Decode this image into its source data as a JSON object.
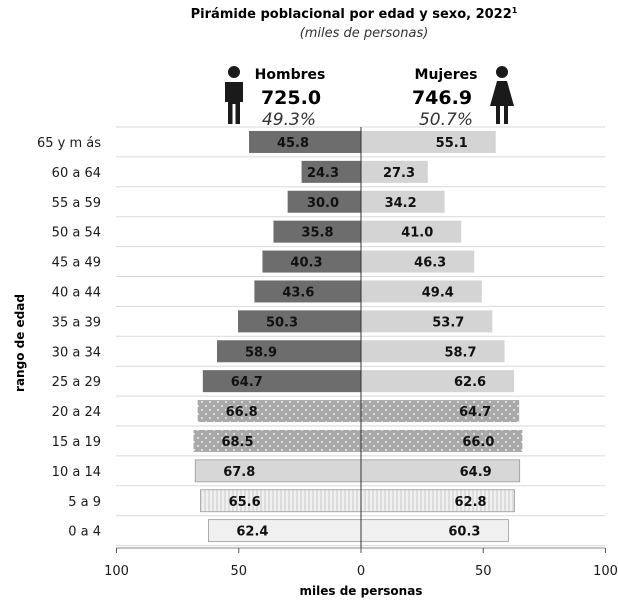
{
  "chart_data": {
    "type": "bar",
    "orientation": "horizontal-population-pyramid",
    "title": "Pirámide poblacional por edad y sexo, 2022",
    "title_superscript": "1",
    "subtitle": "(miles de personas)",
    "xlabel": "miles de personas",
    "ylabel": "rango de edad",
    "xlim": [
      -100,
      100
    ],
    "xticks": [
      "100",
      "50",
      "0",
      "50",
      "100"
    ],
    "xtick_values": [
      -100,
      -50,
      0,
      50,
      100
    ],
    "categories": [
      "65 y m ás",
      "60 a 64",
      "55 a 59",
      "50 a 54",
      "45 a 49",
      "40 a 44",
      "35 a 39",
      "30 a 34",
      "25 a 29",
      "20 a 24",
      "15 a 19",
      "10 a 14",
      "5 a 9",
      "0 a 4"
    ],
    "series": [
      {
        "name": "Hombres",
        "total": "725.0",
        "percent": "49.3%",
        "values": [
          45.8,
          24.3,
          30.0,
          35.8,
          40.3,
          43.6,
          50.3,
          58.9,
          64.7,
          66.8,
          68.5,
          67.8,
          65.6,
          62.4
        ],
        "labels": [
          "45.8",
          "24.3",
          "30.0",
          "35.8",
          "40.3",
          "43.6",
          "50.3",
          "58.9",
          "64.7",
          "66.8",
          "68.5",
          "67.8",
          "65.6",
          "62.4"
        ]
      },
      {
        "name": "Mujeres",
        "total": "746.9",
        "percent": "50.7%",
        "values": [
          55.1,
          27.3,
          34.2,
          41.0,
          46.3,
          49.4,
          53.7,
          58.7,
          62.6,
          64.7,
          66.0,
          64.9,
          62.8,
          60.3
        ],
        "labels": [
          "55.1",
          "27.3",
          "34.2",
          "41.0",
          "46.3",
          "49.4",
          "53.7",
          "58.7",
          "62.6",
          "64.7",
          "66.0",
          "64.9",
          "62.8",
          "60.3"
        ]
      }
    ],
    "grid": true,
    "legend": "top",
    "colors": {
      "male_older": "#6b6b6b",
      "female_older": "#d3d3d3",
      "dotted_fill": "#a7a7a7",
      "light_fill": "#dcdcdc",
      "lightest_fill": "#eeeeee",
      "grid": "#d9d9d9"
    },
    "icons": [
      "male-person-icon",
      "female-person-icon"
    ]
  }
}
